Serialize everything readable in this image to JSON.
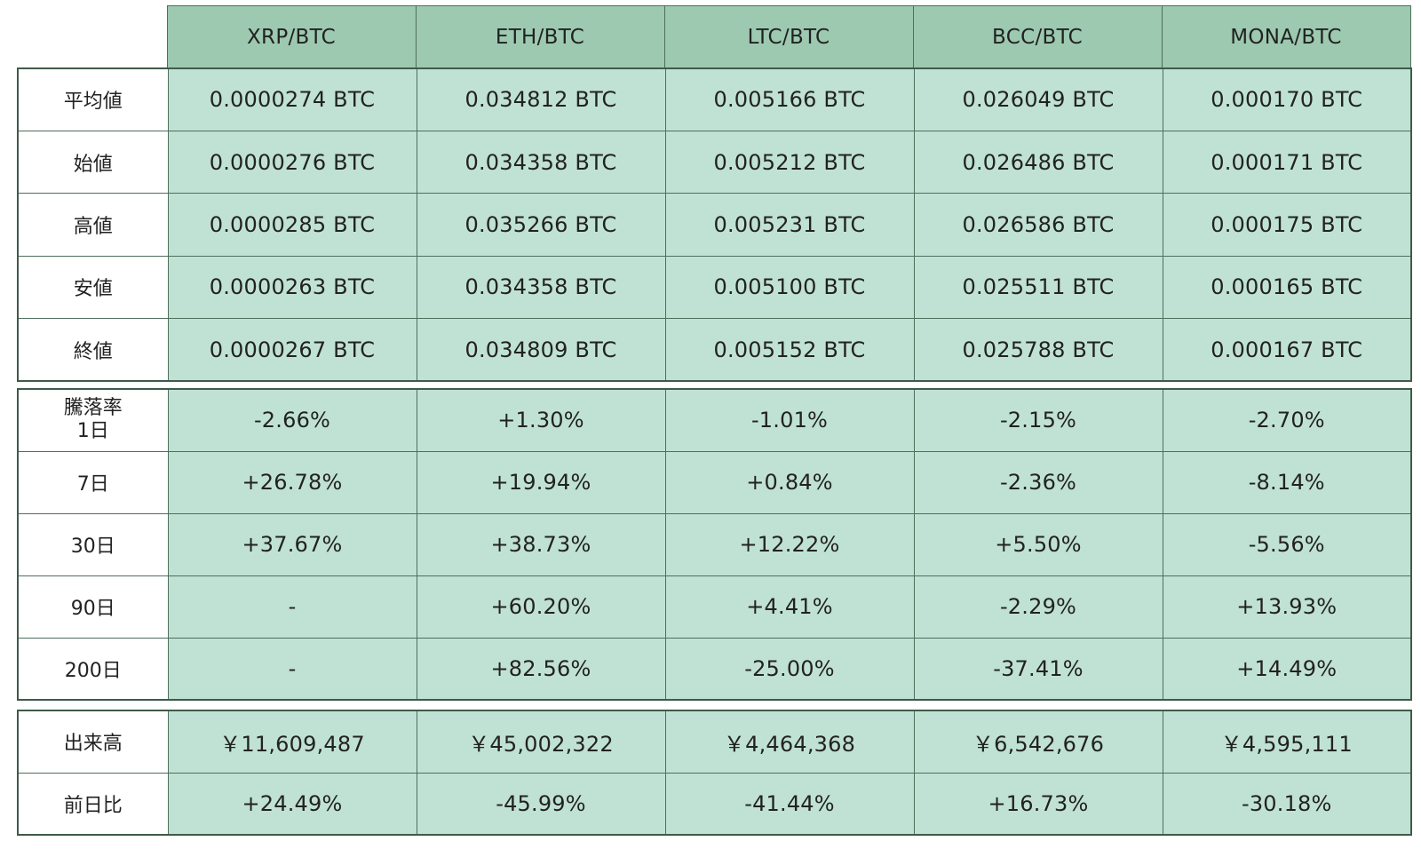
{
  "pairs": [
    "XRP/BTC",
    "ETH/BTC",
    "LTC/BTC",
    "BCC/BTC",
    "MONA/BTC"
  ],
  "price_rows": [
    {
      "label": "平均値",
      "values": [
        "0.0000274 BTC",
        "0.034812 BTC",
        "0.005166 BTC",
        "0.026049 BTC",
        "0.000170 BTC"
      ]
    },
    {
      "label": "始値",
      "values": [
        "0.0000276 BTC",
        "0.034358 BTC",
        "0.005212 BTC",
        "0.026486 BTC",
        "0.000171 BTC"
      ]
    },
    {
      "label": "高値",
      "values": [
        "0.0000285 BTC",
        "0.035266 BTC",
        "0.005231 BTC",
        "0.026586 BTC",
        "0.000175 BTC"
      ]
    },
    {
      "label": "安値",
      "values": [
        "0.0000263 BTC",
        "0.034358 BTC",
        "0.005100 BTC",
        "0.025511 BTC",
        "0.000165 BTC"
      ]
    },
    {
      "label": "終値",
      "values": [
        "0.0000267 BTC",
        "0.034809 BTC",
        "0.005152 BTC",
        "0.025788 BTC",
        "0.000167 BTC"
      ]
    }
  ],
  "change_rows": [
    {
      "label": "騰落率",
      "label_line2": "1日",
      "values": [
        "-2.66%",
        "+1.30%",
        "-1.01%",
        "-2.15%",
        "-2.70%"
      ]
    },
    {
      "label": "7日",
      "values": [
        "+26.78%",
        "+19.94%",
        "+0.84%",
        "-2.36%",
        "-8.14%"
      ]
    },
    {
      "label": "30日",
      "values": [
        "+37.67%",
        "+38.73%",
        "+12.22%",
        "+5.50%",
        "-5.56%"
      ]
    },
    {
      "label": "90日",
      "values": [
        "-",
        "+60.20%",
        "+4.41%",
        "-2.29%",
        "+13.93%"
      ]
    },
    {
      "label": "200日",
      "values": [
        "-",
        "+82.56%",
        "-25.00%",
        "-37.41%",
        "+14.49%"
      ]
    }
  ],
  "volume_rows": [
    {
      "label": "出来高",
      "values": [
        "￥11,609,487",
        "￥45,002,322",
        "￥4,464,368",
        "￥6,542,676",
        "￥4,595,111"
      ]
    },
    {
      "label": "前日比",
      "values": [
        "+24.49%",
        "-45.99%",
        "-41.44%",
        "+16.73%",
        "-30.18%"
      ]
    }
  ],
  "colors": {
    "header_bg": "#9cc9b0",
    "cell_bg": "#c0e2d4",
    "border": "#4f6e5c",
    "label_bg": "#ffffff"
  }
}
